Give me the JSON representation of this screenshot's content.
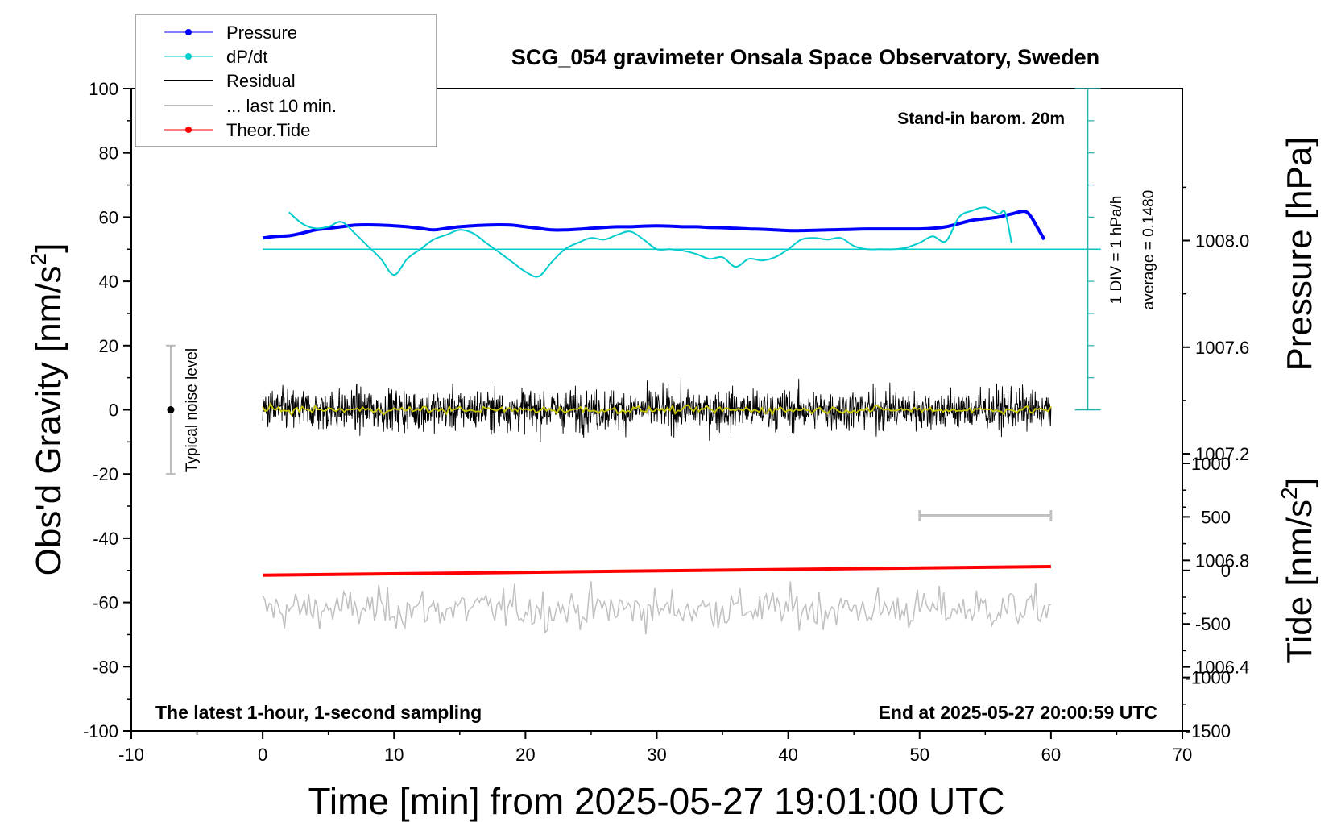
{
  "chart_data": {
    "type": "line",
    "title": "SCG_054 gravimeter Onsala Space Observatory, Sweden",
    "xlabel": "Time [min] from 2025-05-27 19:01:00 UTC",
    "ylabel_left_main": "Obs'd Gravity [nm/s",
    "ylabel_left_sup": "2",
    "ylabel_left_end": "]",
    "ylabel_right_top": "Pressure [hPa]",
    "ylabel_right_bottom_main": "Tide [nm/s",
    "ylabel_right_bottom_sup": "2",
    "ylabel_right_bottom_end": "]",
    "xlim": [
      -10,
      70
    ],
    "ylim": [
      -100,
      100
    ],
    "x_ticks": [
      "-10",
      "0",
      "10",
      "20",
      "30",
      "40",
      "50",
      "60",
      "70"
    ],
    "y_ticks": [
      "100",
      "80",
      "60",
      "40",
      "20",
      "0",
      "-20",
      "-40",
      "-60",
      "-80",
      "-100"
    ],
    "pressure_axis": {
      "ticks": [
        "1008.0",
        "1007.6",
        "1007.2",
        "1006.8",
        "1006.4"
      ],
      "tick_values": [
        1008.0,
        1007.6,
        1007.2,
        1006.8,
        1006.4
      ],
      "range_hpa": [
        1006.16,
        1008.57
      ]
    },
    "tide_axis": {
      "ticks": [
        "1000",
        "500",
        "0",
        "-500",
        "-1000",
        "-1500"
      ],
      "tick_values": [
        1000,
        500,
        0,
        -500,
        -1000,
        -1500
      ],
      "range": [
        -1500,
        1000
      ]
    },
    "legend": {
      "placement": "top-left",
      "entries": [
        "Pressure",
        "dP/dt",
        "Residual",
        "... last 10 min.",
        "Theor.Tide"
      ]
    },
    "annotations": {
      "stand_in": "Stand-in barom. 20m",
      "div_label": "1 DIV = 1 hPa/h",
      "average": "average = 0.1480",
      "noise": "Typical noise level",
      "latest": "The latest 1-hour, 1-second sampling",
      "end_at": "End at 2025-05-27 20:00:59 UTC"
    },
    "series": [
      {
        "name": "Pressure",
        "color": "#0000ff",
        "x": [
          0,
          1,
          2,
          3,
          4,
          5,
          6,
          7,
          8,
          9,
          10,
          11,
          12,
          13,
          14,
          15,
          16,
          17,
          18,
          19,
          20,
          21,
          22,
          23,
          24,
          25,
          26,
          27,
          28,
          29,
          30,
          31,
          32,
          33,
          34,
          35,
          36,
          37,
          38,
          39,
          40,
          41,
          42,
          43,
          44,
          45,
          46,
          47,
          48,
          49,
          50,
          51,
          52,
          53,
          54,
          55,
          56,
          57,
          58,
          58.5,
          59,
          59.5
        ],
        "y": [
          53.5,
          54,
          54.2,
          55,
          56,
          56.5,
          57,
          57.5,
          57.6,
          57.5,
          57.3,
          57,
          56.5,
          56,
          56.5,
          57,
          57.3,
          57.5,
          57.6,
          57.5,
          57,
          56.5,
          56,
          56,
          56.2,
          56.5,
          56.8,
          57,
          57,
          57.2,
          57.3,
          57.2,
          57,
          57,
          56.8,
          56.7,
          56.5,
          56.3,
          56.2,
          56,
          55.8,
          55.8,
          55.9,
          56,
          56.1,
          56.2,
          56.3,
          56.3,
          56.3,
          56.3,
          56.3,
          56.5,
          57,
          58,
          59,
          59.5,
          60,
          61,
          61.8,
          60,
          56.5,
          53
        ]
      },
      {
        "name": "dP/dt",
        "color": "#00cccc",
        "baseline": 50,
        "x": [
          2,
          3,
          4,
          5,
          6,
          7,
          8,
          9,
          10,
          11,
          12,
          13,
          14,
          15,
          16,
          17,
          18,
          19,
          20,
          21,
          22,
          23,
          24,
          25,
          26,
          27,
          28,
          29,
          30,
          31,
          32,
          33,
          34,
          35,
          36,
          37,
          38,
          39,
          40,
          41,
          42,
          43,
          44,
          45,
          46,
          47,
          48,
          49,
          50,
          51,
          52,
          53,
          54,
          55,
          56,
          56.5,
          57
        ],
        "y": [
          61.5,
          58,
          56.5,
          57,
          58.5,
          55,
          51,
          47,
          42,
          47,
          50,
          53,
          54.5,
          56,
          55,
          52,
          49,
          46,
          43,
          41.5,
          46,
          50,
          52,
          53.5,
          53,
          54.5,
          55.5,
          53,
          50,
          50,
          49.5,
          48.5,
          47,
          47.5,
          44.5,
          47,
          46.5,
          47.5,
          50,
          53,
          53.5,
          53,
          53.5,
          51,
          50,
          50,
          50,
          50.5,
          52,
          54,
          52.5,
          60,
          62,
          63,
          61,
          61.5,
          52
        ]
      },
      {
        "name": "Residual",
        "color": "#000000",
        "x_range": [
          0,
          60
        ],
        "amplitude_rms": 5,
        "center": 0
      },
      {
        "name": "... last 10 min.",
        "color": "#c0c0c0",
        "x_range": [
          0,
          60
        ],
        "center": -62,
        "amplitude": 8
      },
      {
        "name": "Theor.Tide",
        "color": "#ff0000",
        "x": [
          0,
          60
        ],
        "y": [
          -51.5,
          -48.8
        ]
      },
      {
        "name": "Typical noise level",
        "color": "#000000",
        "x": -7,
        "y": 0,
        "error": 20
      }
    ]
  }
}
